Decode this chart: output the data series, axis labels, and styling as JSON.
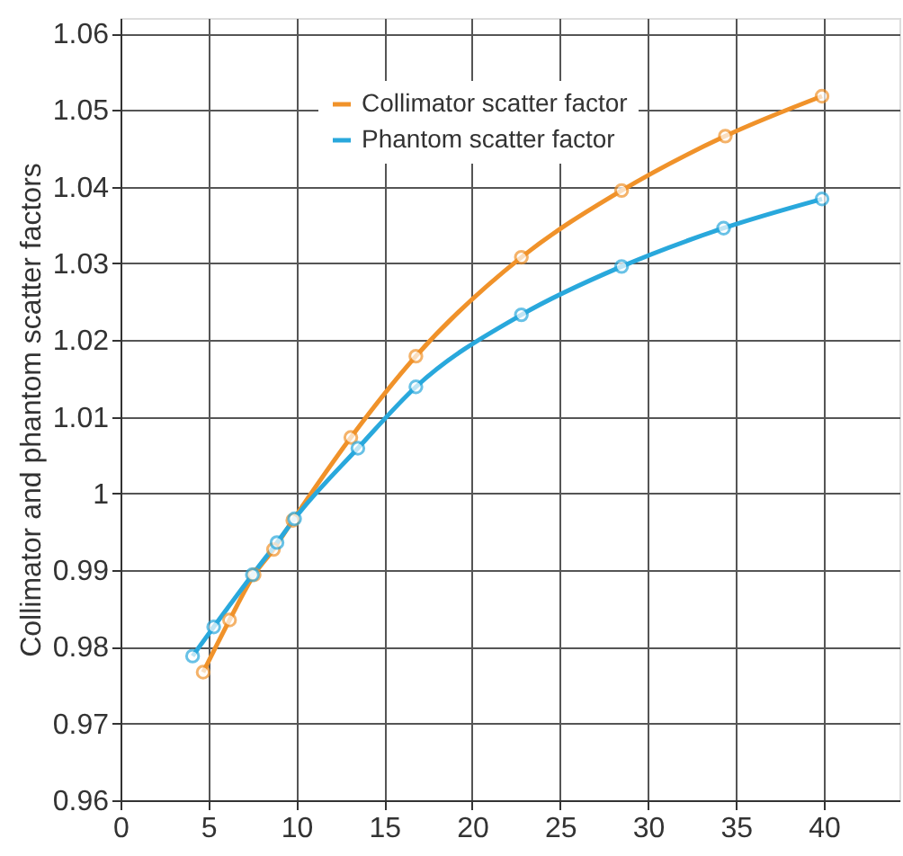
{
  "chart_data": {
    "type": "line",
    "ylabel": "Collimator and phantom scatter factors",
    "xlim": [
      0,
      44.3
    ],
    "xticks": [
      0,
      5,
      10,
      15,
      20,
      25,
      30,
      35,
      40
    ],
    "ylim": [
      0.96,
      1.062
    ],
    "yticks": [
      0.96,
      0.97,
      0.98,
      0.99,
      {
        "value": 1,
        "label": "1"
      },
      1.01,
      1.02,
      1.03,
      1.04,
      1.05,
      1.06
    ],
    "grid": true,
    "legend": "top",
    "marker": "circle",
    "line_style": "solid",
    "series": [
      {
        "name": "Collimator scatter factor",
        "color": "#f0922a",
        "x": [
          4.7,
          6.2,
          7.6,
          8.7,
          9.8,
          13.1,
          16.8,
          22.8,
          28.5,
          34.4,
          39.9
        ],
        "values": [
          0.9767,
          0.9835,
          0.9894,
          0.9927,
          0.9965,
          1.0073,
          1.0179,
          1.0308,
          1.0395,
          1.0466,
          1.0518
        ]
      },
      {
        "name": "Phantom scatter factor",
        "color": "#29a8dc",
        "x": [
          4.1,
          5.3,
          7.5,
          8.9,
          9.9,
          13.5,
          16.8,
          22.8,
          28.5,
          34.3,
          39.9
        ],
        "values": [
          0.9788,
          0.9826,
          0.9894,
          0.9936,
          0.9967,
          1.0059,
          1.0139,
          1.0233,
          1.0296,
          1.0346,
          1.0384
        ]
      }
    ]
  }
}
